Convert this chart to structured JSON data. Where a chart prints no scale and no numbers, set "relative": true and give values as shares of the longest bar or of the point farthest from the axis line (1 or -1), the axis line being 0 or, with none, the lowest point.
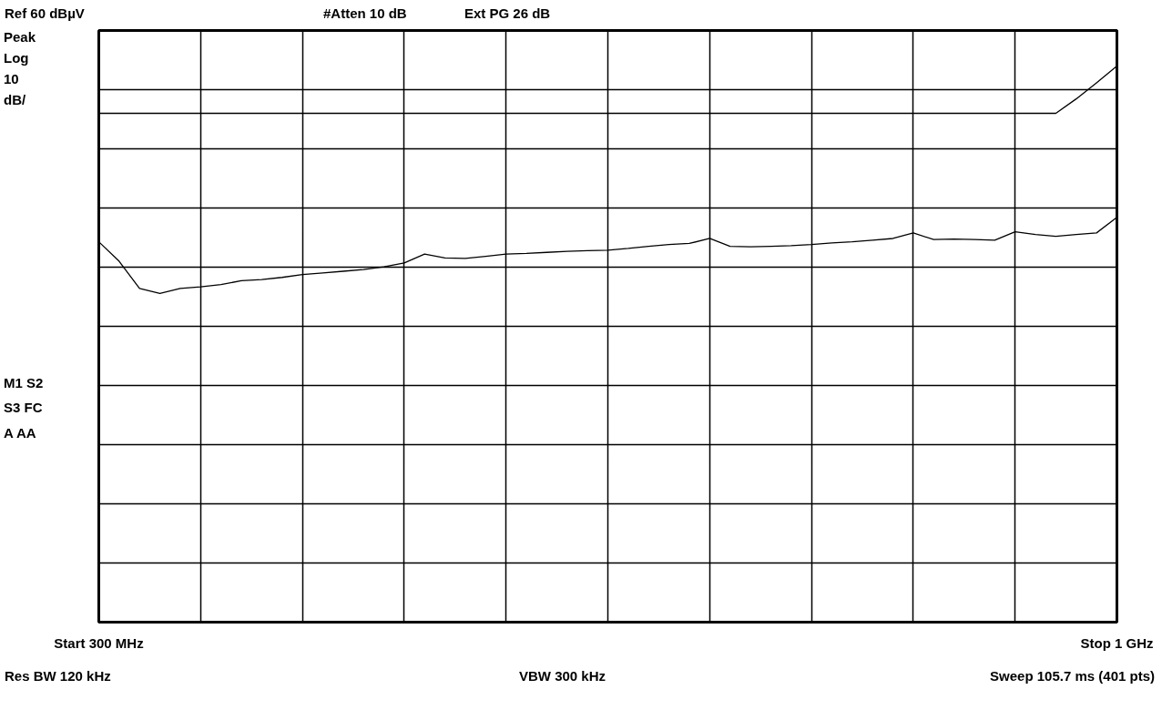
{
  "chart_data": {
    "type": "line",
    "relative": true,
    "grid": true,
    "categories": [
      "Start 300 MHz",
      null,
      null,
      null,
      null,
      null,
      null,
      null,
      null,
      null,
      null,
      null,
      null,
      null,
      null,
      null,
      null,
      null,
      null,
      null,
      null,
      null,
      null,
      null,
      null,
      null,
      null,
      null,
      null,
      null,
      null,
      null,
      null,
      null,
      null,
      null,
      null,
      null,
      null,
      null,
      null,
      null,
      null,
      null,
      null,
      null,
      null,
      null,
      null,
      null,
      "Stop 1 GHz"
    ],
    "series": [
      {
        "color": "#000000",
        "values": [
          0.915,
          0.915,
          0.915,
          0.915,
          0.915,
          0.915,
          0.915,
          0.915,
          0.915,
          0.915,
          0.915,
          0.915,
          0.915,
          0.915,
          0.915,
          0.915,
          0.915,
          0.915,
          0.915,
          0.915,
          0.915,
          0.915,
          0.915,
          0.915,
          0.915,
          0.915,
          0.915,
          0.915,
          0.915,
          0.915,
          0.915,
          0.915,
          0.915,
          0.915,
          0.915,
          0.915,
          0.915,
          0.915,
          0.915,
          0.915,
          0.915,
          0.915,
          0.915,
          0.915,
          0.915,
          0.915,
          0.915,
          0.915,
          0.941,
          0.97,
          1.0
        ]
      },
      {
        "color": "#000000",
        "values": [
          0.684,
          0.649,
          0.6,
          0.591,
          0.6,
          0.603,
          0.607,
          0.614,
          0.616,
          0.62,
          0.625,
          0.628,
          0.631,
          0.634,
          0.639,
          0.646,
          0.662,
          0.655,
          0.654,
          0.658,
          0.662,
          0.663,
          0.665,
          0.667,
          0.668,
          0.669,
          0.672,
          0.676,
          0.679,
          0.681,
          0.69,
          0.676,
          0.675,
          0.676,
          0.677,
          0.679,
          0.682,
          0.684,
          0.687,
          0.69,
          0.7,
          0.688,
          0.689,
          0.688,
          0.687,
          0.702,
          0.697,
          0.694,
          0.697,
          0.7,
          0.728
        ]
      }
    ],
    "annotations": [
      "Ref 60 dBµV",
      "#Atten 10 dB",
      "Ext PG 26 dB",
      "Peak",
      "Log",
      "10",
      "dB/",
      "M1 S2",
      "S3 FC",
      "A AA",
      "Res BW 120 kHz",
      "VBW 300 kHz",
      "Sweep 105.7 ms (401 pts)"
    ]
  }
}
